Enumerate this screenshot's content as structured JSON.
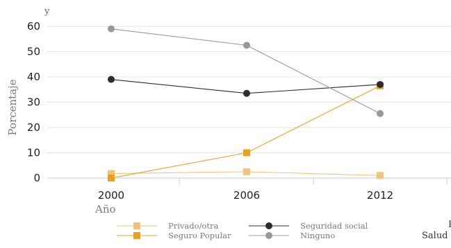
{
  "chart_data": {
    "type": "line",
    "corner_label": "y",
    "ylabel": "Porcentaje",
    "xlabel": "Año",
    "categories": [
      "2000",
      "2006",
      "2012"
    ],
    "ylim": [
      0,
      60
    ],
    "yticks": [
      "0",
      "10",
      "20",
      "30",
      "40",
      "50",
      "60"
    ],
    "grid": "horizontal",
    "legend_position": "bottom",
    "series": [
      {
        "name": "Privado/otra",
        "values": [
          1.8,
          2.5,
          1.0
        ],
        "color": "#f2c27a",
        "marker": "square"
      },
      {
        "name": "Seguro Popular",
        "values": [
          0,
          10,
          36.5
        ],
        "color": "#e8a21c",
        "marker": "square"
      },
      {
        "name": "Seguridad social",
        "values": [
          39,
          33.5,
          37
        ],
        "color": "#2b2b2b",
        "marker": "circle"
      },
      {
        "name": "Ninguno",
        "values": [
          59,
          52.5,
          25.5
        ],
        "color": "#999999",
        "marker": "circle"
      }
    ],
    "edge_text": [
      "P",
      "Salud"
    ]
  }
}
